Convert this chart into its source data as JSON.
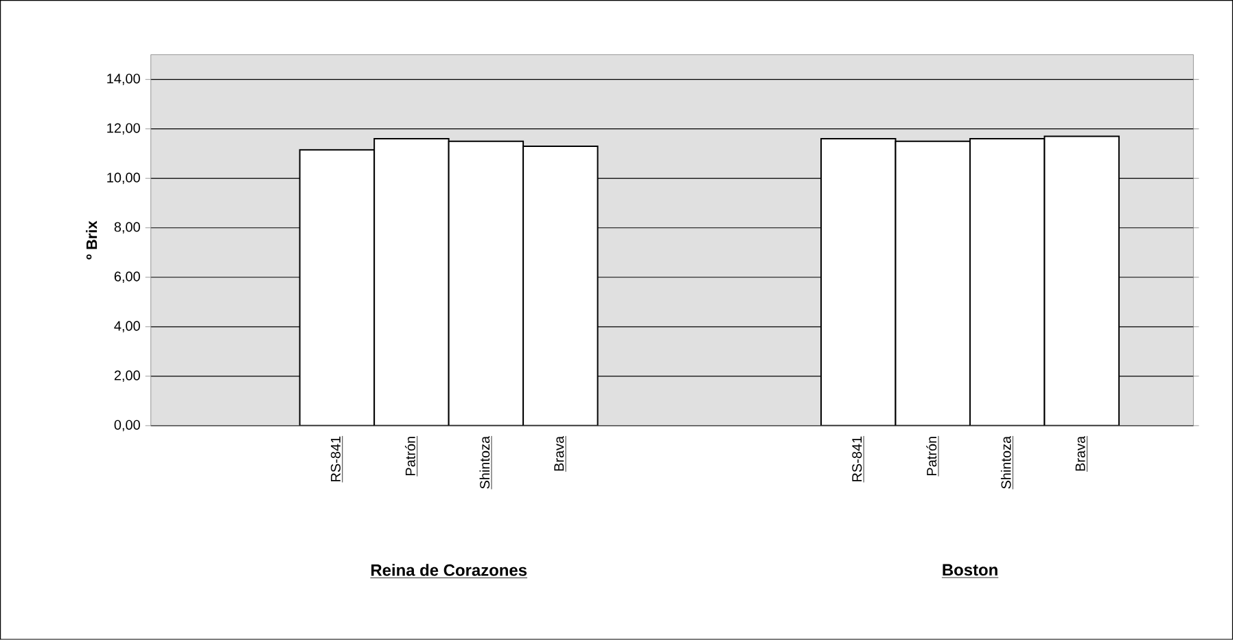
{
  "chart_data": {
    "type": "bar",
    "categories": [
      null,
      null,
      "RS-841",
      "Patrón",
      "Shintoza",
      "Brava",
      null,
      null,
      null,
      "RS-841",
      "Patrón",
      "Shintoza",
      "Brava",
      null
    ],
    "values": [
      null,
      null,
      11.15,
      11.6,
      11.5,
      11.3,
      null,
      null,
      null,
      11.6,
      11.5,
      11.6,
      11.7,
      null
    ],
    "color": "#ffffff",
    "ylabel": "º Brix",
    "ylim": [
      0,
      15
    ],
    "yticks": [
      {
        "value": 0,
        "label": "0,00"
      },
      {
        "value": 2,
        "label": "2,00"
      },
      {
        "value": 4,
        "label": "4,00"
      },
      {
        "value": 6,
        "label": "6,00"
      },
      {
        "value": 8,
        "label": "8,00"
      },
      {
        "value": 10,
        "label": "10,00"
      },
      {
        "value": 12,
        "label": "12,00"
      },
      {
        "value": 14,
        "label": "14,00"
      }
    ],
    "grid": "y",
    "annotations": [
      "Reina de Corazones",
      "Boston"
    ]
  }
}
